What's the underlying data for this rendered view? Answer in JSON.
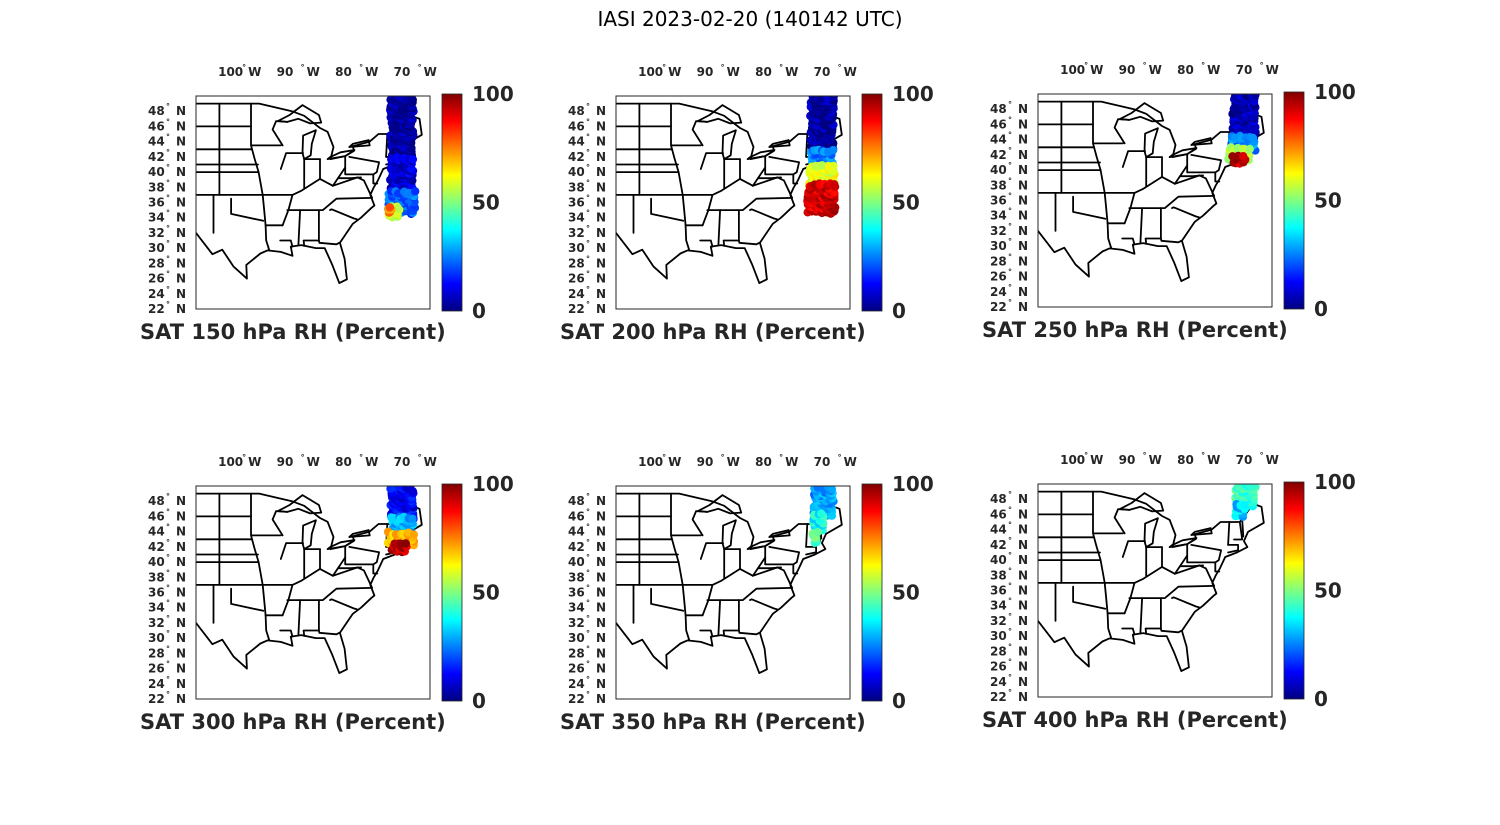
{
  "figure": {
    "title": "IASI 2023-02-20 (140142 UTC)"
  },
  "axes": {
    "lon_ticks": [
      {
        "value": -100,
        "num": "100",
        "hemi": "W"
      },
      {
        "value": -90,
        "num": "90",
        "hemi": "W"
      },
      {
        "value": -80,
        "num": "80",
        "hemi": "W"
      },
      {
        "value": -70,
        "num": "70",
        "hemi": "W"
      }
    ],
    "lat_ticks": [
      {
        "value": 48,
        "num": "48",
        "hemi": "N"
      },
      {
        "value": 46,
        "num": "46",
        "hemi": "N"
      },
      {
        "value": 44,
        "num": "44",
        "hemi": "N"
      },
      {
        "value": 42,
        "num": "42",
        "hemi": "N"
      },
      {
        "value": 40,
        "num": "40",
        "hemi": "N"
      },
      {
        "value": 38,
        "num": "38",
        "hemi": "N"
      },
      {
        "value": 36,
        "num": "36",
        "hemi": "N"
      },
      {
        "value": 34,
        "num": "34",
        "hemi": "N"
      },
      {
        "value": 32,
        "num": "32",
        "hemi": "N"
      },
      {
        "value": 30,
        "num": "30",
        "hemi": "N"
      },
      {
        "value": 28,
        "num": "28",
        "hemi": "N"
      },
      {
        "value": 26,
        "num": "26",
        "hemi": "N"
      },
      {
        "value": 24,
        "num": "24",
        "hemi": "N"
      },
      {
        "value": 22,
        "num": "22",
        "hemi": "N"
      }
    ],
    "degree_symbol": "°",
    "lon_range": [
      -106,
      -66
    ],
    "lat_range": [
      22,
      50
    ],
    "colorbar": {
      "ticks": [
        "100",
        "50",
        "0"
      ],
      "range": [
        0,
        100
      ],
      "colormap": "jet"
    }
  },
  "chart_data": [
    {
      "type": "scatter-map",
      "title": "SAT 150 hPa RH (Percent)",
      "swaths": [
        {
          "lat_range": [
            42,
            50
          ],
          "lon_range": [
            -72.8,
            -68.8
          ],
          "rh": 3
        },
        {
          "lat_range": [
            37.5,
            42
          ],
          "lon_range": [
            -72.8,
            -68.8
          ],
          "rh": 8
        },
        {
          "lat_range": [
            34.5,
            37.5
          ],
          "lon_range": [
            -73.2,
            -68.5
          ],
          "rh": 22
        },
        {
          "lat_range": [
            34,
            35.5
          ],
          "lon_range": [
            -73.4,
            -71
          ],
          "rh": 55
        },
        {
          "lat_range": [
            34.6,
            35.4
          ],
          "lon_range": [
            -73.4,
            -72.5
          ],
          "rh": 75
        }
      ]
    },
    {
      "type": "scatter-map",
      "title": "SAT 200 hPa RH (Percent)",
      "swaths": [
        {
          "lat_range": [
            43,
            50
          ],
          "lon_range": [
            -72.8,
            -68.8
          ],
          "rh": 3
        },
        {
          "lat_range": [
            40,
            43
          ],
          "lon_range": [
            -72.8,
            -68.8
          ],
          "rh": 25
        },
        {
          "lat_range": [
            38,
            41
          ],
          "lon_range": [
            -73,
            -68.6
          ],
          "rh": 60
        },
        {
          "lat_range": [
            34.5,
            38.5
          ],
          "lon_range": [
            -73.3,
            -68.5
          ],
          "rh": 92
        }
      ]
    },
    {
      "type": "scatter-map",
      "title": "SAT 250 hPa RH (Percent)",
      "swaths": [
        {
          "lat_range": [
            44,
            50
          ],
          "lon_range": [
            -72.8,
            -68.8
          ],
          "rh": 5
        },
        {
          "lat_range": [
            42.5,
            44.5
          ],
          "lon_range": [
            -73,
            -68.8
          ],
          "rh": 25
        },
        {
          "lat_range": [
            41.2,
            43
          ],
          "lon_range": [
            -73.6,
            -69.8
          ],
          "rh": 55
        },
        {
          "lat_range": [
            40.8,
            42
          ],
          "lon_range": [
            -72.8,
            -70.5
          ],
          "rh": 95
        }
      ]
    },
    {
      "type": "scatter-map",
      "title": "SAT 300 hPa RH (Percent)",
      "swaths": [
        {
          "lat_range": [
            45.5,
            50
          ],
          "lon_range": [
            -72.8,
            -68.8
          ],
          "rh": 12
        },
        {
          "lat_range": [
            43.5,
            46
          ],
          "lon_range": [
            -72.8,
            -68.8
          ],
          "rh": 30
        },
        {
          "lat_range": [
            42,
            44
          ],
          "lon_range": [
            -73.2,
            -68.6
          ],
          "rh": 70
        },
        {
          "lat_range": [
            41.3,
            42.5
          ],
          "lon_range": [
            -72.6,
            -69.8
          ],
          "rh": 95
        }
      ]
    },
    {
      "type": "scatter-map",
      "title": "SAT 350 hPa RH (Percent)",
      "swaths": [
        {
          "lat_range": [
            46,
            50
          ],
          "lon_range": [
            -72.2,
            -68.8
          ],
          "rh": 28
        },
        {
          "lat_range": [
            44,
            46.5
          ],
          "lon_range": [
            -72.3,
            -70.5
          ],
          "rh": 38
        },
        {
          "lat_range": [
            42.5,
            44
          ],
          "lon_range": [
            -72.4,
            -71.5
          ],
          "rh": 45
        }
      ]
    },
    {
      "type": "scatter-map",
      "title": "SAT 400 hPa RH (Percent)",
      "swaths": [
        {
          "lat_range": [
            47,
            50
          ],
          "lon_range": [
            -72.3,
            -68.8
          ],
          "rh": 42
        },
        {
          "lat_range": [
            45.5,
            47.5
          ],
          "lon_range": [
            -72.3,
            -70.5
          ],
          "rh": 33
        }
      ]
    }
  ]
}
